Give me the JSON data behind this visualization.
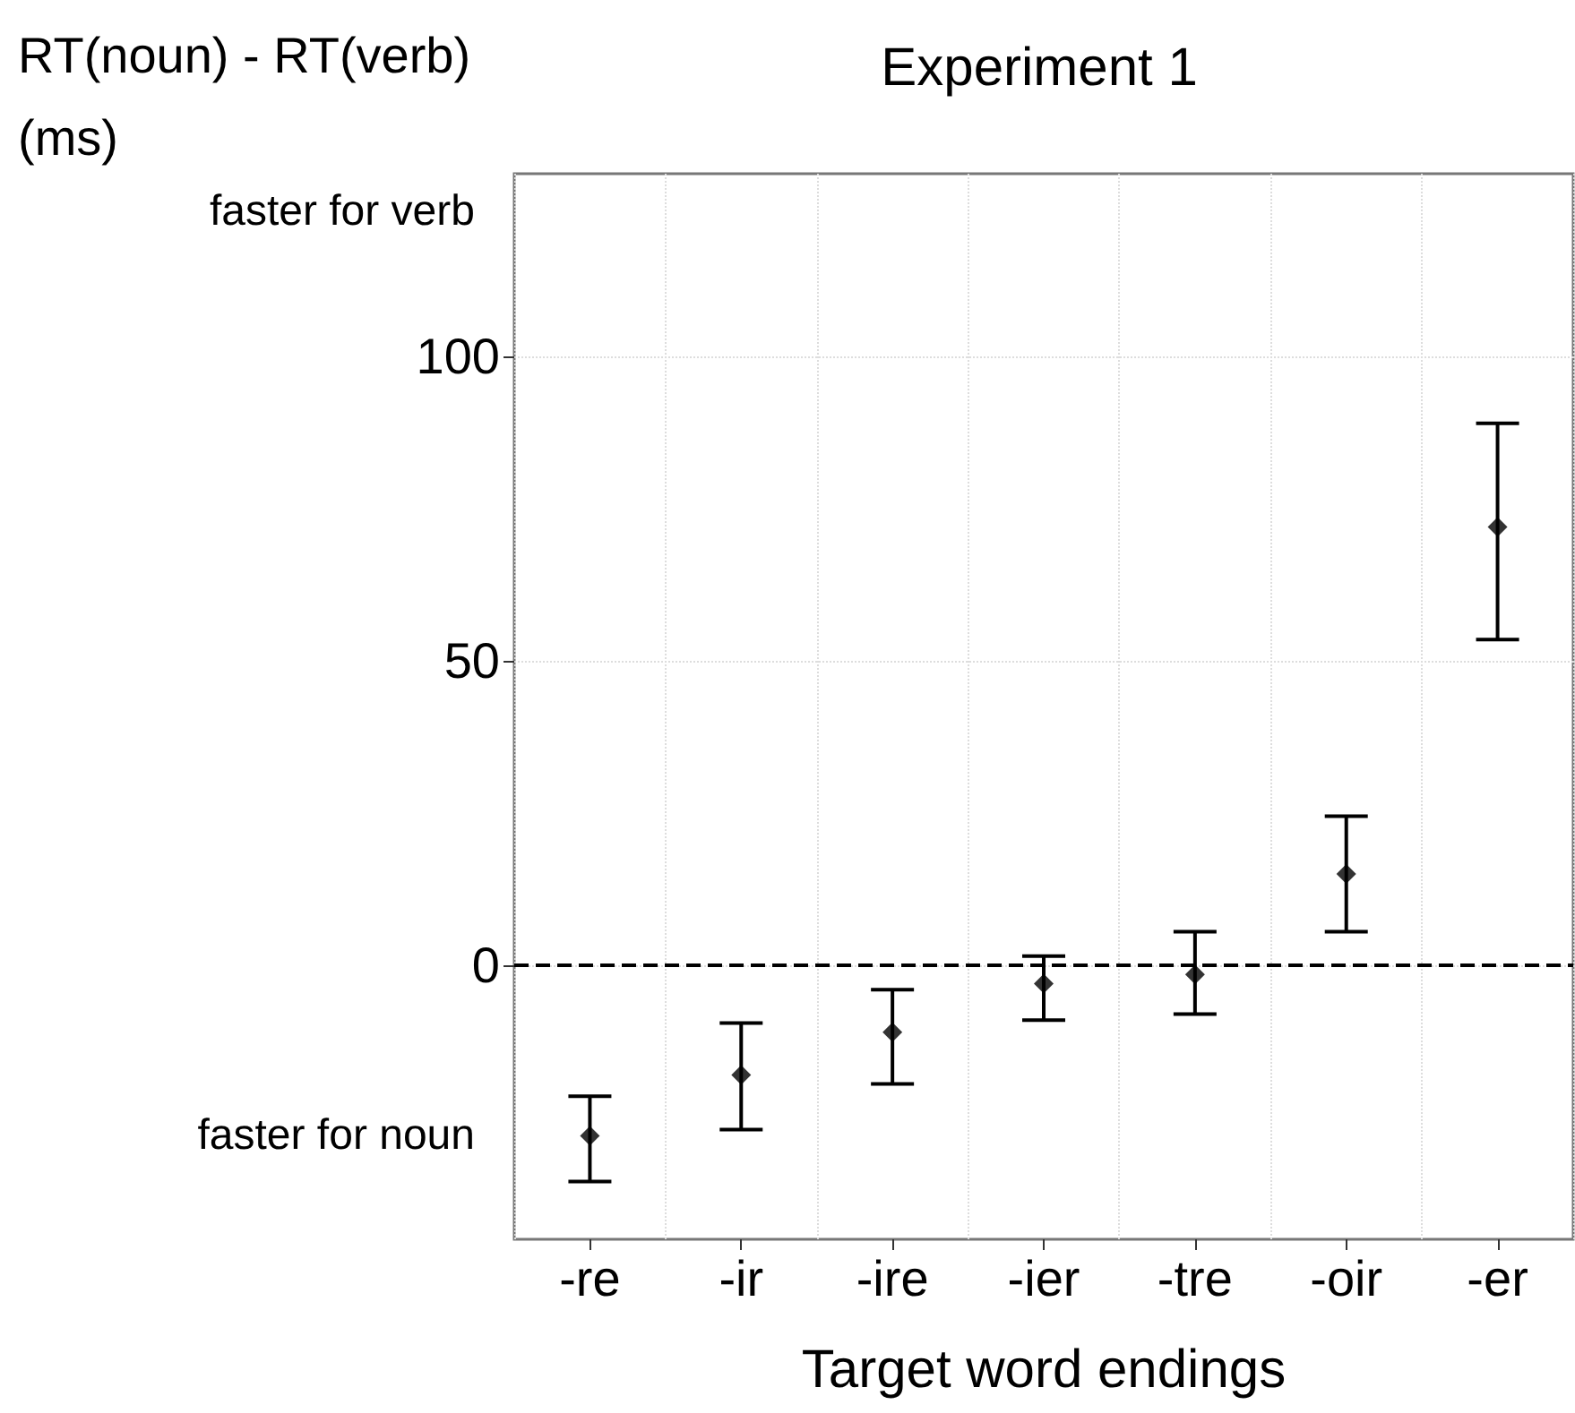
{
  "chart_data": {
    "type": "scatter",
    "title": "Experiment 1",
    "ylabel": "RT(noun) - RT(verb)\n(ms)",
    "xlabel": "Target word endings",
    "categories": [
      "-re",
      "-ir",
      "-ire",
      "-ier",
      "-tre",
      "-oir",
      "-er"
    ],
    "values": [
      -28,
      -18,
      -11,
      -3,
      -1.5,
      15,
      72
    ],
    "errors": [
      [
        -35.5,
        -21.5
      ],
      [
        -27,
        -9.5
      ],
      [
        -19.5,
        -4
      ],
      [
        -9,
        1.5
      ],
      [
        -8,
        5.5
      ],
      [
        5.5,
        24.5
      ],
      [
        53.5,
        89
      ]
    ],
    "color": "#000000",
    "marker": "diamond",
    "ylim": [
      -45,
      130
    ],
    "yticks": [
      0,
      50,
      100
    ],
    "grid": true,
    "ref_lines": [
      {
        "axis": "y",
        "value": 0,
        "line_style": "dashed",
        "color": "#000000"
      }
    ],
    "annotations": [
      "faster for verb",
      "faster for noun"
    ]
  }
}
